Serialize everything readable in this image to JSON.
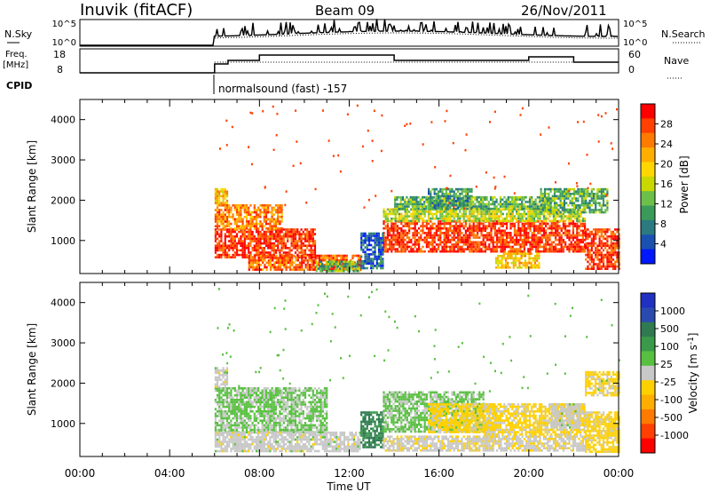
{
  "header": {
    "station": "Inuvik (fitACF)",
    "beam": "Beam 09",
    "date": "26/Nov/2011"
  },
  "strips": {
    "nsky": {
      "label": "N.Sky",
      "ticks": [
        "10^5",
        "10^0"
      ]
    },
    "nsearch": {
      "label": "N.Search",
      "ticks": [
        "10^5",
        "10^0"
      ]
    },
    "freq": {
      "label_line1": "Freq.",
      "label_line2": "[MHz]",
      "ticks": [
        "18",
        "8"
      ]
    },
    "nave": {
      "label": "Nave",
      "ticks": [
        "60",
        "0"
      ]
    },
    "cpid": {
      "label": "CPID",
      "text": "normalsound (fast) -157"
    }
  },
  "colorbars": {
    "power": {
      "label": "Power [dB]",
      "ticks": [
        "28",
        "24",
        "20",
        "16",
        "12",
        "8",
        "4"
      ],
      "colors": [
        "#ff0000",
        "#ff4000",
        "#ff7a00",
        "#ffae00",
        "#ffd700",
        "#c8d800",
        "#6cc04a",
        "#3a9a5a",
        "#2a7a80",
        "#1a50b0",
        "#0018ff"
      ]
    },
    "velocity": {
      "label": "Velocity [m s",
      "label_sup": "-1",
      "label_end": "]",
      "ticks": [
        "1000",
        "500",
        "100",
        "25",
        "-25",
        "-100",
        "-500",
        "-1000"
      ],
      "colors": [
        "#2030c0",
        "#2a4ab0",
        "#2f7a50",
        "#3a9a4a",
        "#58c040",
        "#c8c8c8",
        "#ffd000",
        "#ffae00",
        "#ff7a00",
        "#ff4000",
        "#ff0000"
      ]
    }
  },
  "chart_data": [
    {
      "type": "heatmap",
      "name": "power",
      "ylabel": "Slant Range [km]",
      "yticks": [
        "4000",
        "3000",
        "2000",
        "1000"
      ],
      "ylim": [
        180,
        4500
      ],
      "xlim": [
        0,
        24
      ],
      "blocks": [
        {
          "t0": 6.0,
          "t1": 10.5,
          "r0": 600,
          "r1": 1300,
          "value": 28
        },
        {
          "t0": 6.0,
          "t1": 9.0,
          "r0": 1300,
          "r1": 1900,
          "value": 24
        },
        {
          "t0": 6.0,
          "t1": 6.6,
          "r0": 1900,
          "r1": 2300,
          "value": 20
        },
        {
          "t0": 7.5,
          "t1": 12.5,
          "r0": 300,
          "r1": 650,
          "value": 26
        },
        {
          "t0": 10.5,
          "t1": 12.5,
          "r0": 250,
          "r1": 500,
          "value": 12
        },
        {
          "t0": 13.5,
          "t1": 22.5,
          "r0": 700,
          "r1": 1500,
          "value": 28
        },
        {
          "t0": 13.5,
          "t1": 22.5,
          "r0": 1500,
          "r1": 1800,
          "value": 16
        },
        {
          "t0": 14.0,
          "t1": 21.0,
          "r0": 1800,
          "r1": 2100,
          "value": 12
        },
        {
          "t0": 22.5,
          "t1": 24.0,
          "r0": 300,
          "r1": 1300,
          "value": 28
        },
        {
          "t0": 12.5,
          "t1": 13.5,
          "r0": 300,
          "r1": 1200,
          "value": 6
        },
        {
          "t0": 15.5,
          "t1": 17.5,
          "r0": 1800,
          "r1": 2300,
          "value": 10
        },
        {
          "t0": 20.5,
          "t1": 23.5,
          "r0": 1700,
          "r1": 2300,
          "value": 12
        },
        {
          "t0": 18.5,
          "t1": 20.5,
          "r0": 300,
          "r1": 700,
          "value": 20
        }
      ]
    },
    {
      "type": "heatmap",
      "name": "velocity",
      "ylabel": "Slant Range [km]",
      "yticks": [
        "4000",
        "3000",
        "2000",
        "1000"
      ],
      "ylim": [
        180,
        4500
      ],
      "xlim": [
        0,
        24
      ],
      "xlabel": "Time UT",
      "xticks": [
        "00:00",
        "04:00",
        "08:00",
        "12:00",
        "16:00",
        "20:00",
        "00:00"
      ],
      "blocks": [
        {
          "t0": 6.0,
          "t1": 11.0,
          "r0": 800,
          "r1": 1900,
          "value": 150
        },
        {
          "t0": 6.0,
          "t1": 6.6,
          "r0": 1900,
          "r1": 2400,
          "value": 0
        },
        {
          "t0": 6.0,
          "t1": 12.5,
          "r0": 300,
          "r1": 800,
          "value": 0
        },
        {
          "t0": 12.5,
          "t1": 13.5,
          "r0": 400,
          "r1": 1300,
          "value": 600
        },
        {
          "t0": 13.5,
          "t1": 18.0,
          "r0": 800,
          "r1": 1800,
          "value": 150
        },
        {
          "t0": 15.5,
          "t1": 18.5,
          "r0": 800,
          "r1": 1500,
          "value": -200
        },
        {
          "t0": 18.0,
          "t1": 22.5,
          "r0": 700,
          "r1": 1500,
          "value": -150
        },
        {
          "t0": 21.0,
          "t1": 22.3,
          "r0": 900,
          "r1": 1500,
          "value": 0
        },
        {
          "t0": 22.5,
          "t1": 24.0,
          "r0": 300,
          "r1": 1300,
          "value": -200
        },
        {
          "t0": 13.5,
          "t1": 22.5,
          "r0": 300,
          "r1": 700,
          "value": -60
        },
        {
          "t0": 22.5,
          "t1": 24.0,
          "r0": 1700,
          "r1": 2300,
          "value": -150
        }
      ]
    }
  ]
}
